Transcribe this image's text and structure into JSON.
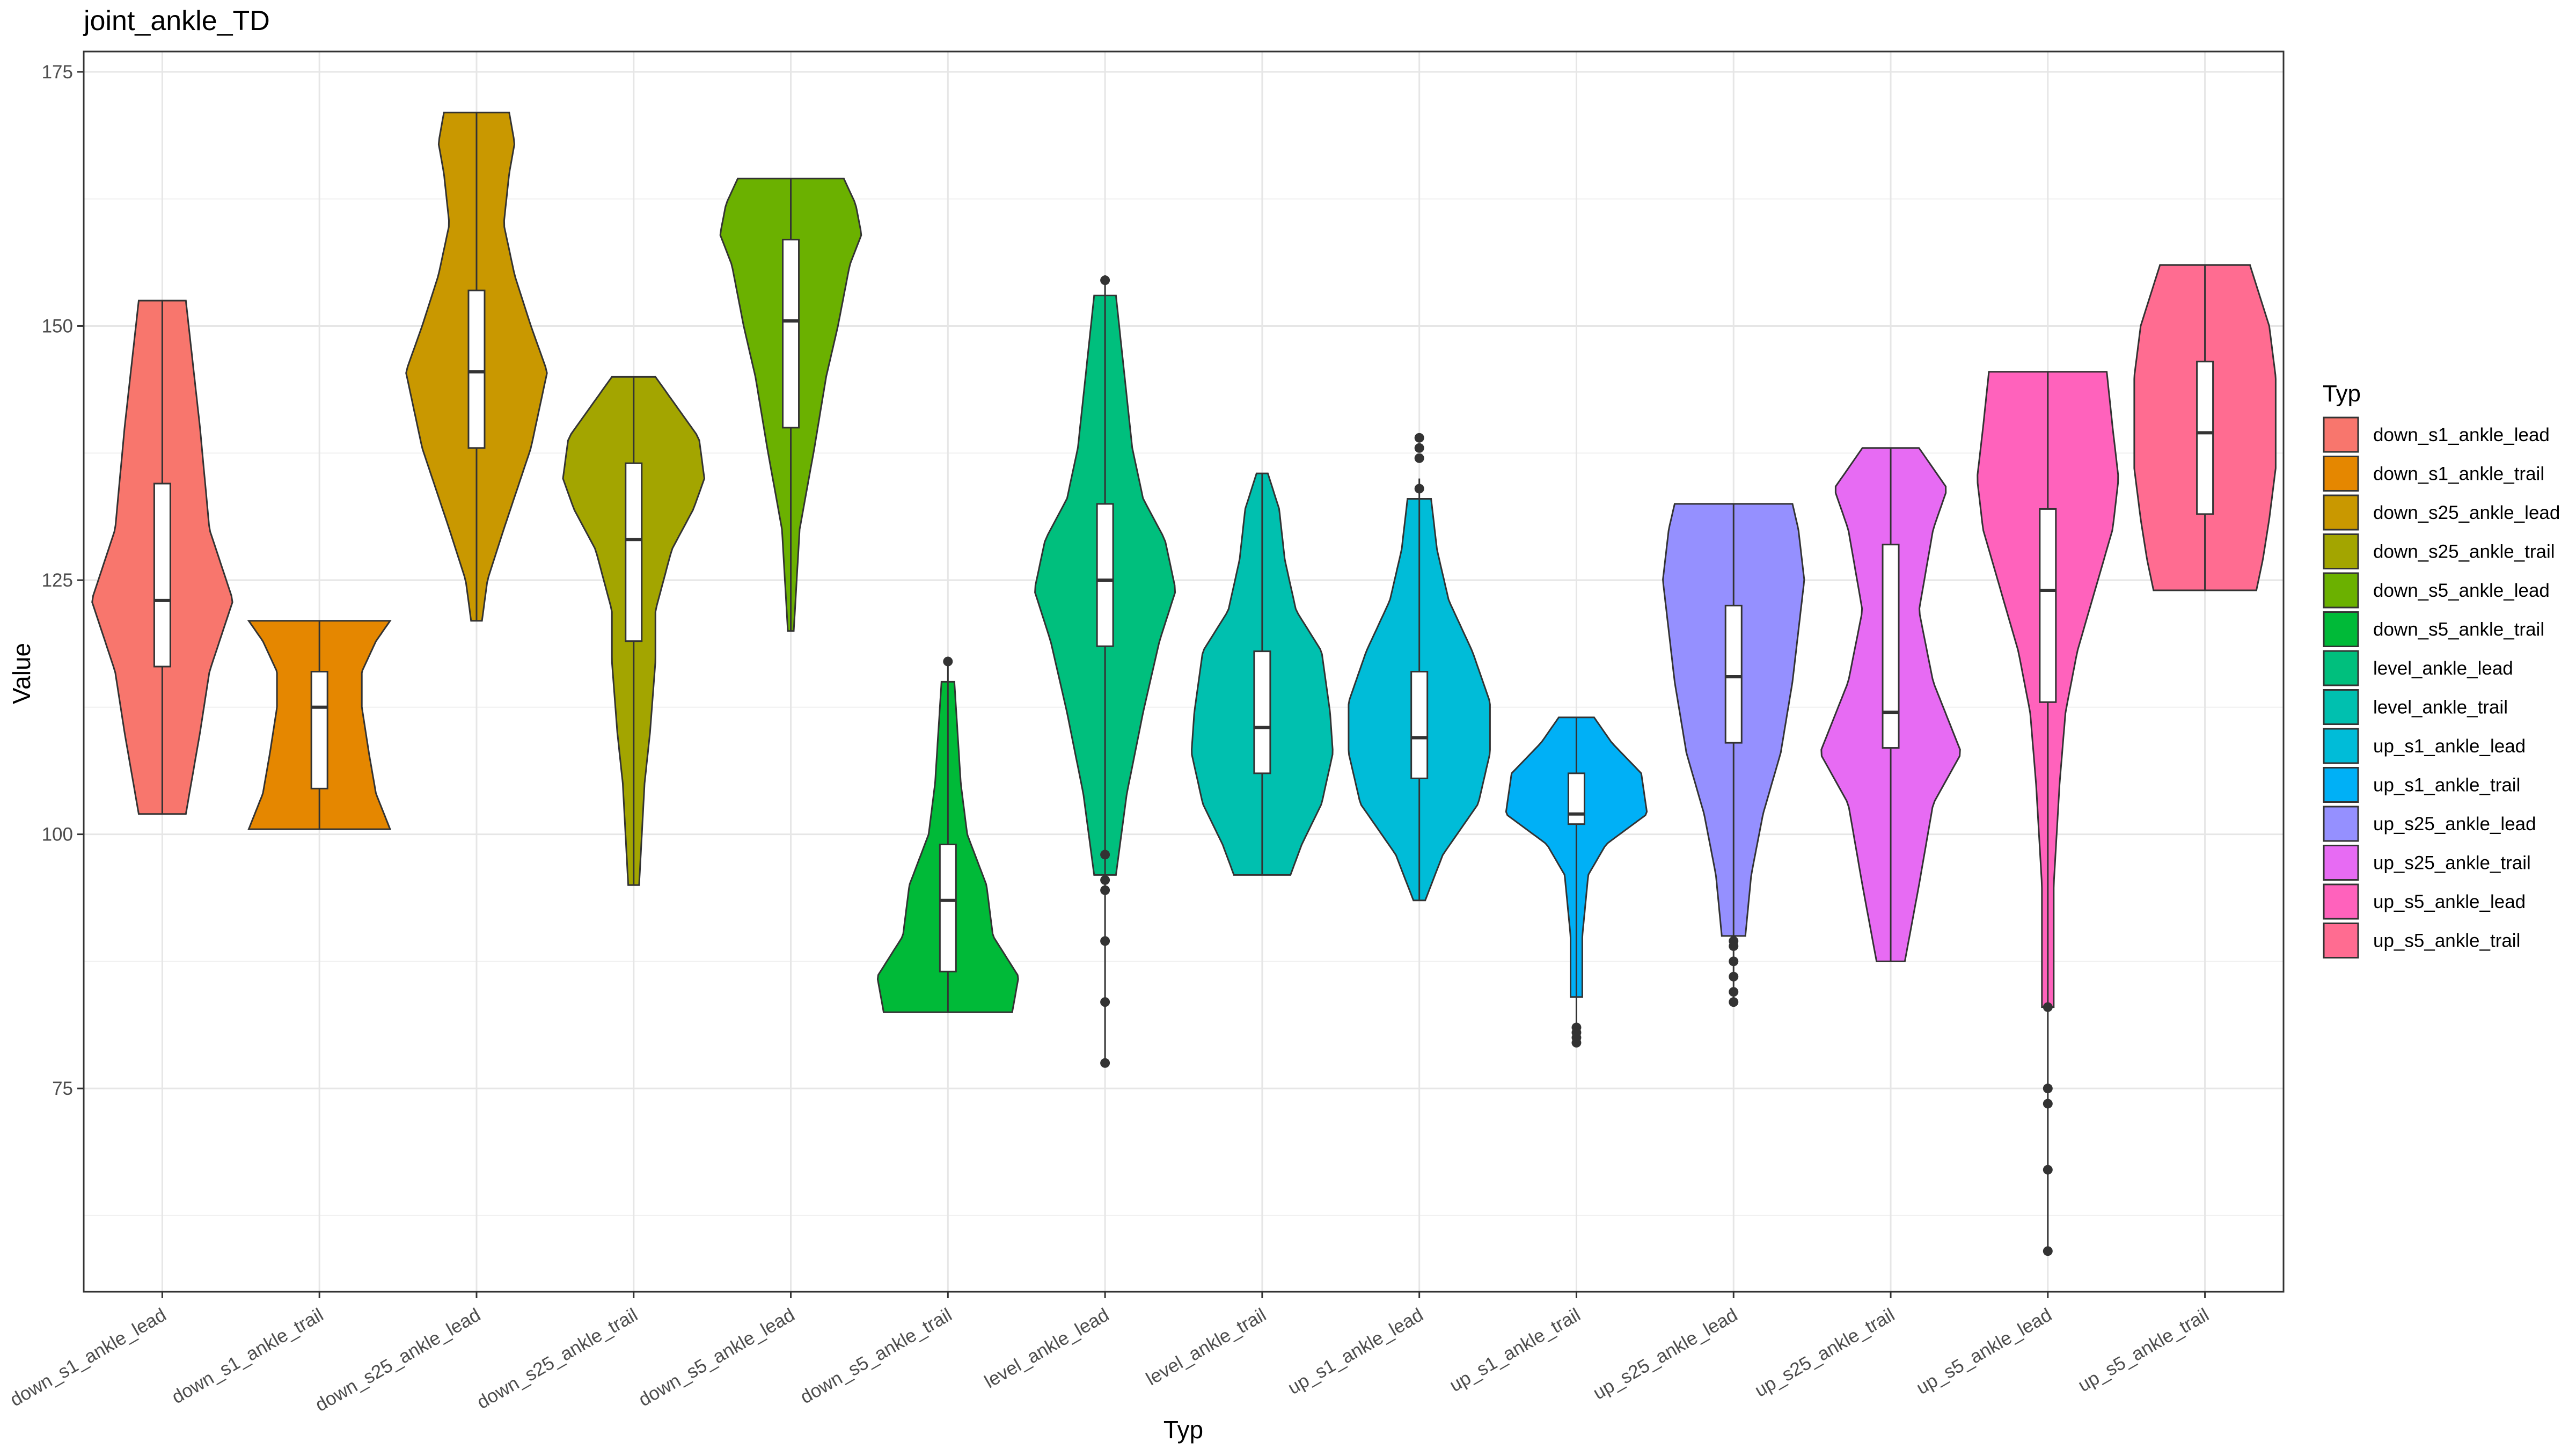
{
  "chart_data": {
    "type": "violin",
    "title": "joint_ankle_TD",
    "xlabel": "Typ",
    "ylabel": "Value",
    "ylim": [
      55,
      177
    ],
    "yticks": [
      75,
      100,
      125,
      150,
      175
    ],
    "grid": true,
    "legend": {
      "title": "Typ",
      "position": "right"
    },
    "categories": [
      "down_s1_ankle_lead",
      "down_s1_ankle_trail",
      "down_s25_ankle_lead",
      "down_s25_ankle_trail",
      "down_s5_ankle_lead",
      "down_s5_ankle_trail",
      "level_ankle_lead",
      "level_ankle_trail",
      "up_s1_ankle_lead",
      "up_s1_ankle_trail",
      "up_s25_ankle_lead",
      "up_s25_ankle_trail",
      "up_s5_ankle_lead",
      "up_s5_ankle_trail"
    ],
    "colors": [
      "#F8766D",
      "#E58700",
      "#C99800",
      "#A3A500",
      "#6BB100",
      "#00BA38",
      "#00BF7D",
      "#00C0AF",
      "#00BCD8",
      "#00B0F6",
      "#9590FF",
      "#E76BF3",
      "#FF62BC",
      "#FF6C91"
    ],
    "series": [
      {
        "name": "down_s1_ankle_lead",
        "min": 102,
        "max": 152.5,
        "q1": 116.5,
        "median": 123,
        "q3": 134.5,
        "outliers": [],
        "profile": [
          [
            102,
            0.5
          ],
          [
            110,
            0.8
          ],
          [
            116,
            1
          ],
          [
            123,
            1.5
          ],
          [
            130,
            1
          ],
          [
            140,
            0.8
          ],
          [
            152.5,
            0.5
          ]
        ]
      },
      {
        "name": "down_s1_ankle_trail",
        "min": 100.5,
        "max": 121,
        "q1": 104.5,
        "median": 112.5,
        "q3": 116,
        "outliers": [],
        "profile": [
          [
            100.5,
            5
          ],
          [
            104,
            4
          ],
          [
            108,
            3.5
          ],
          [
            112.5,
            3
          ],
          [
            116,
            3
          ],
          [
            119,
            4
          ],
          [
            121,
            5
          ]
        ]
      },
      {
        "name": "down_s25_ankle_lead",
        "min": 121,
        "max": 171,
        "q1": 138,
        "median": 145.5,
        "q3": 153.5,
        "outliers": [],
        "profile": [
          [
            121,
            1
          ],
          [
            125,
            2
          ],
          [
            130,
            5
          ],
          [
            138,
            10
          ],
          [
            145.5,
            13
          ],
          [
            150,
            10
          ],
          [
            155,
            7
          ],
          [
            160,
            5
          ],
          [
            165,
            6
          ],
          [
            168,
            7
          ],
          [
            171,
            6
          ]
        ]
      },
      {
        "name": "down_s25_ankle_trail",
        "min": 95,
        "max": 145,
        "q1": 119,
        "median": 129,
        "q3": 136.5,
        "outliers": [],
        "profile": [
          [
            95,
            1
          ],
          [
            100,
            1.5
          ],
          [
            105,
            2
          ],
          [
            110,
            3
          ],
          [
            117,
            4
          ],
          [
            122,
            4
          ],
          [
            128,
            7
          ],
          [
            132,
            11
          ],
          [
            135,
            13
          ],
          [
            139,
            12
          ],
          [
            142,
            8
          ],
          [
            145,
            4
          ]
        ]
      },
      {
        "name": "down_s5_ankle_lead",
        "min": 120,
        "max": 164.5,
        "q1": 140,
        "median": 150.5,
        "q3": 158.5,
        "outliers": [],
        "profile": [
          [
            120,
            0.5
          ],
          [
            130,
            1.5
          ],
          [
            138,
            4
          ],
          [
            145,
            6
          ],
          [
            150,
            8
          ],
          [
            156,
            10
          ],
          [
            159,
            12
          ],
          [
            162,
            11
          ],
          [
            164.5,
            9
          ]
        ]
      },
      {
        "name": "down_s5_ankle_trail",
        "min": 82.5,
        "max": 117,
        "q1": 86.5,
        "median": 93.5,
        "q3": 99,
        "outliers": [
          117
        ],
        "profile": [
          [
            82.5,
            10
          ],
          [
            86,
            11
          ],
          [
            90,
            7
          ],
          [
            95,
            6
          ],
          [
            100,
            3
          ],
          [
            105,
            2
          ],
          [
            110,
            1.5
          ],
          [
            115,
            1
          ]
        ]
      },
      {
        "name": "level_ankle_lead",
        "min": 77.5,
        "max": 155,
        "q1": 118.5,
        "median": 125,
        "q3": 132.5,
        "outliers": [
          77.5,
          83.5,
          89.5,
          94.5,
          95.5,
          98,
          154.5
        ],
        "profile": [
          [
            96,
            2
          ],
          [
            104,
            4
          ],
          [
            112,
            7
          ],
          [
            119,
            10
          ],
          [
            124,
            13
          ],
          [
            129,
            11
          ],
          [
            133,
            7
          ],
          [
            138,
            5
          ],
          [
            143,
            4
          ],
          [
            148,
            3
          ],
          [
            153,
            2
          ]
        ]
      },
      {
        "name": "level_ankle_trail",
        "min": 96,
        "max": 135.5,
        "q1": 106,
        "median": 110.5,
        "q3": 118,
        "outliers": [],
        "profile": [
          [
            96,
            10
          ],
          [
            99,
            14
          ],
          [
            103,
            21
          ],
          [
            108,
            25
          ],
          [
            112,
            24
          ],
          [
            118,
            21
          ],
          [
            122,
            12
          ],
          [
            127,
            8
          ],
          [
            132,
            6
          ],
          [
            135.5,
            2
          ]
        ]
      },
      {
        "name": "up_s1_ankle_lead",
        "min": 93.5,
        "max": 135,
        "q1": 105.5,
        "median": 109.5,
        "q3": 116,
        "outliers": [
          134,
          137,
          138,
          139
        ],
        "profile": [
          [
            93.5,
            1
          ],
          [
            98,
            4
          ],
          [
            103,
            10
          ],
          [
            108,
            12
          ],
          [
            113,
            12
          ],
          [
            118,
            9
          ],
          [
            123,
            5
          ],
          [
            128,
            3
          ],
          [
            133,
            2
          ]
        ]
      },
      {
        "name": "up_s1_ankle_trail",
        "min": 79.5,
        "max": 111.5,
        "q1": 101,
        "median": 102,
        "q3": 106,
        "outliers": [
          79.5,
          80,
          80.5,
          81
        ],
        "profile": [
          [
            84,
            1
          ],
          [
            90,
            1
          ],
          [
            96,
            2
          ],
          [
            99,
            5
          ],
          [
            102,
            12
          ],
          [
            106,
            11
          ],
          [
            109,
            6
          ],
          [
            111.5,
            3
          ]
        ]
      },
      {
        "name": "up_s25_ankle_lead",
        "min": 83.5,
        "max": 132.5,
        "q1": 109,
        "median": 115.5,
        "q3": 122.5,
        "outliers": [
          83.5,
          84.5,
          86,
          87.5,
          89,
          89.5
        ],
        "profile": [
          [
            90,
            2
          ],
          [
            96,
            3
          ],
          [
            102,
            5
          ],
          [
            108,
            8
          ],
          [
            115,
            10
          ],
          [
            120,
            11
          ],
          [
            125,
            12
          ],
          [
            130,
            11
          ],
          [
            132.5,
            10
          ]
        ]
      },
      {
        "name": "up_s25_ankle_trail",
        "min": 87.5,
        "max": 138,
        "q1": 108.5,
        "median": 112,
        "q3": 128.5,
        "outliers": [],
        "profile": [
          [
            87.5,
            1
          ],
          [
            95,
            2
          ],
          [
            103,
            3
          ],
          [
            108,
            5
          ],
          [
            115,
            3
          ],
          [
            122,
            2
          ],
          [
            130,
            3
          ],
          [
            134,
            4
          ],
          [
            138,
            2
          ]
        ]
      },
      {
        "name": "up_s5_ankle_lead",
        "min": 59,
        "max": 145.5,
        "q1": 113,
        "median": 124,
        "q3": 132,
        "outliers": [
          59,
          67,
          73.5,
          75,
          83
        ],
        "profile": [
          [
            83,
            1
          ],
          [
            95,
            1
          ],
          [
            105,
            2
          ],
          [
            112,
            3
          ],
          [
            118,
            5
          ],
          [
            124,
            8
          ],
          [
            130,
            11
          ],
          [
            135,
            12
          ],
          [
            140,
            11
          ],
          [
            145.5,
            10
          ]
        ]
      },
      {
        "name": "up_s5_ankle_trail",
        "min": 124,
        "max": 156,
        "q1": 131.5,
        "median": 139.5,
        "q3": 146.5,
        "outliers": [],
        "profile": [
          [
            124,
            8
          ],
          [
            127,
            9
          ],
          [
            131,
            10
          ],
          [
            136,
            11
          ],
          [
            140,
            11
          ],
          [
            145,
            11
          ],
          [
            150,
            10
          ],
          [
            154,
            8
          ],
          [
            156,
            7
          ]
        ]
      }
    ]
  }
}
